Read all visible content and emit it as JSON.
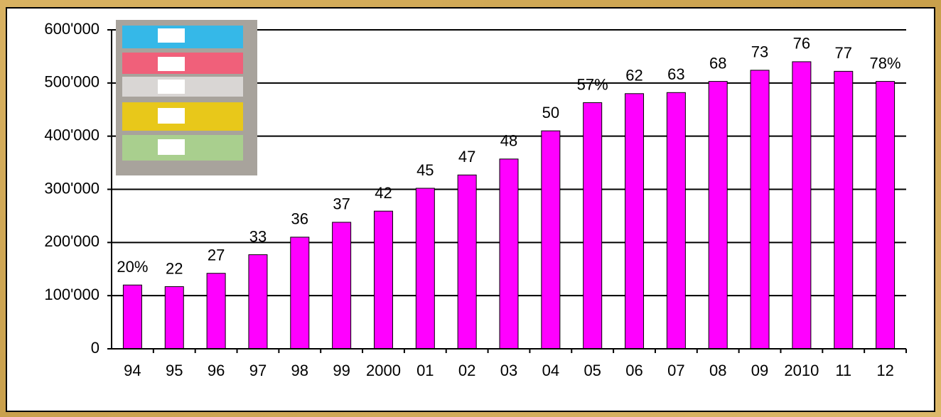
{
  "chart_data": {
    "type": "bar",
    "categories": [
      "94",
      "95",
      "96",
      "97",
      "98",
      "99",
      "2000",
      "01",
      "02",
      "03",
      "04",
      "05",
      "06",
      "07",
      "08",
      "09",
      "2010",
      "11",
      "12"
    ],
    "values": [
      120000,
      117000,
      142000,
      177000,
      210000,
      238000,
      259000,
      302000,
      327000,
      357000,
      410000,
      463000,
      480000,
      482000,
      503000,
      524000,
      540000,
      522000,
      503000
    ],
    "annotations": [
      "20%",
      "22",
      "27",
      "33",
      "36",
      "37",
      "42",
      "45",
      "47",
      "48",
      "50",
      "57%",
      "62",
      "63",
      "68",
      "73",
      "76",
      "77",
      "78%"
    ],
    "color": "#ff00ff",
    "ylim": [
      0,
      600000
    ],
    "yticks": [
      0,
      {
        "value": 100000,
        "label": "100'000"
      },
      {
        "value": 200000,
        "label": "200'000"
      },
      {
        "value": 300000,
        "label": "300'000"
      },
      {
        "value": 400000,
        "label": "400'000"
      },
      {
        "value": 500000,
        "label": "500'000"
      },
      {
        "value": 600000,
        "label": "600'000"
      }
    ],
    "grid": true
  }
}
